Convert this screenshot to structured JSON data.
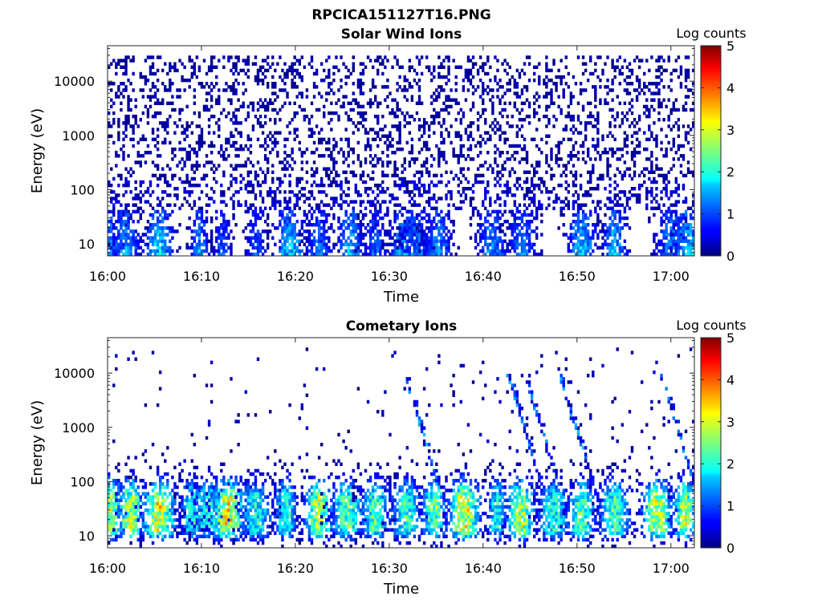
{
  "figure_title": "RPCICA151127T16.PNG",
  "chart_data": [
    {
      "type": "heatmap",
      "title": "Solar Wind Ions",
      "xlabel": "Time",
      "ylabel": "Energy (eV)",
      "x_ticks": [
        "16:00",
        "16:10",
        "16:20",
        "16:30",
        "16:40",
        "16:50",
        "17:00"
      ],
      "x_range_minutes": [
        0,
        62.5
      ],
      "y_scale": "log",
      "y_ticks": [
        10,
        100,
        1000,
        10000
      ],
      "y_tick_labels": [
        "10",
        "100",
        "1000",
        "10000"
      ],
      "ylim": [
        6,
        45000
      ],
      "colorbar": {
        "label": "Log counts",
        "range": [
          0,
          5
        ],
        "ticks": [
          "0",
          "1",
          "2",
          "3",
          "4",
          "5"
        ],
        "colormap": "jet"
      },
      "populations": [
        {
          "kind": "scatter",
          "energy_range_eV": [
            150,
            30000
          ],
          "log_counts": [
            0,
            0.3
          ],
          "density": 0.25
        },
        {
          "kind": "scatter",
          "energy_range_eV": [
            40,
            150
          ],
          "log_counts": [
            0,
            0.6
          ],
          "density": 0.3
        },
        {
          "kind": "bursts",
          "energy_range_eV": [
            6,
            40
          ],
          "log_counts": [
            0,
            2.2
          ],
          "burst_centers_minutes": [
            0.2,
            2.0,
            5.5,
            9.8,
            12.2,
            15.8,
            19.5,
            22.5,
            25.8,
            28.5,
            31.5,
            32.8,
            35.2,
            41.0,
            44.2,
            50.5,
            54.0,
            60.0,
            61.8
          ]
        }
      ]
    },
    {
      "type": "heatmap",
      "title": "Cometary Ions",
      "xlabel": "Time",
      "ylabel": "Energy (eV)",
      "x_ticks": [
        "16:00",
        "16:10",
        "16:20",
        "16:30",
        "16:40",
        "16:50",
        "17:00"
      ],
      "x_range_minutes": [
        0,
        62.5
      ],
      "y_scale": "log",
      "y_ticks": [
        10,
        100,
        1000,
        10000
      ],
      "y_tick_labels": [
        "10",
        "100",
        "1000",
        "10000"
      ],
      "ylim": [
        6,
        45000
      ],
      "colorbar": {
        "label": "Log counts",
        "range": [
          0,
          5
        ],
        "ticks": [
          "0",
          "1",
          "2",
          "3",
          "4",
          "5"
        ],
        "colormap": "jet"
      },
      "populations": [
        {
          "kind": "scatter",
          "energy_range_eV": [
            200,
            30000
          ],
          "log_counts": [
            0,
            0.4
          ],
          "density": 0.02
        },
        {
          "kind": "bursts",
          "energy_range_eV": [
            6,
            400
          ],
          "peak_energy_eV": [
            15,
            40
          ],
          "log_counts": [
            0,
            3.8
          ],
          "burst_centers_minutes": [
            0.3,
            2.5,
            5.5,
            9.0,
            10.8,
            12.8,
            15.8,
            19.0,
            22.5,
            25.5,
            28.5,
            31.8,
            34.8,
            38.0,
            41.5,
            44.0,
            47.5,
            50.5,
            54.0,
            58.5,
            61.5
          ]
        },
        {
          "kind": "dispersive_streaks",
          "energy_range_eV": [
            100,
            10000
          ],
          "log_counts": [
            0.2,
            1.6
          ],
          "streak_start_minutes": [
            31.5,
            42.5,
            44.3,
            48.0,
            58.8
          ]
        }
      ]
    }
  ]
}
